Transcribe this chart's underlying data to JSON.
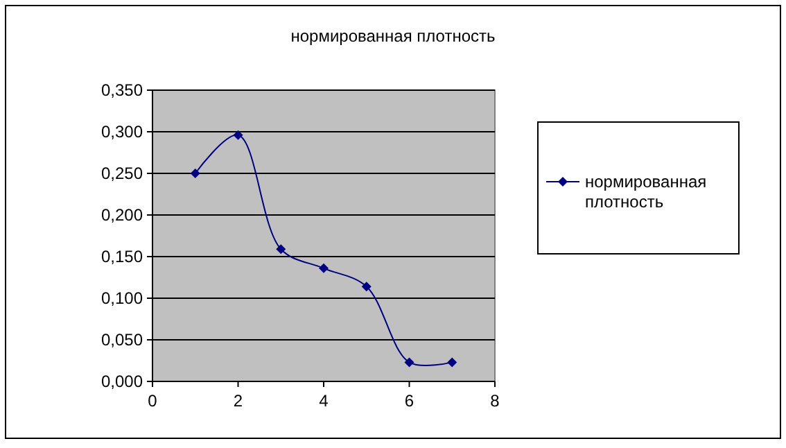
{
  "chart_data": {
    "type": "line",
    "title": "нормированная плотность",
    "x": [
      1,
      2,
      3,
      4,
      5,
      6,
      7
    ],
    "series": [
      {
        "name": "нормированная плотность",
        "color": "#000080",
        "values": [
          0.25,
          0.296,
          0.159,
          0.136,
          0.114,
          0.023,
          0.023
        ]
      }
    ],
    "xlim": [
      0,
      8
    ],
    "xticks": [
      0,
      2,
      4,
      6,
      8
    ],
    "ylim": [
      0,
      0.35
    ],
    "yticks": [
      {
        "value": 0,
        "label": "0,000"
      },
      {
        "value": 0.05,
        "label": "0,050"
      },
      {
        "value": 0.1,
        "label": "0,100"
      },
      {
        "value": 0.15,
        "label": "0,150"
      },
      {
        "value": 0.2,
        "label": "0,200"
      },
      {
        "value": 0.25,
        "label": "0,250"
      },
      {
        "value": 0.3,
        "label": "0,300"
      },
      {
        "value": 0.35,
        "label": "0,350"
      }
    ],
    "grid": "y",
    "legend": "right",
    "marker": "diamond",
    "line_style": "solid"
  }
}
